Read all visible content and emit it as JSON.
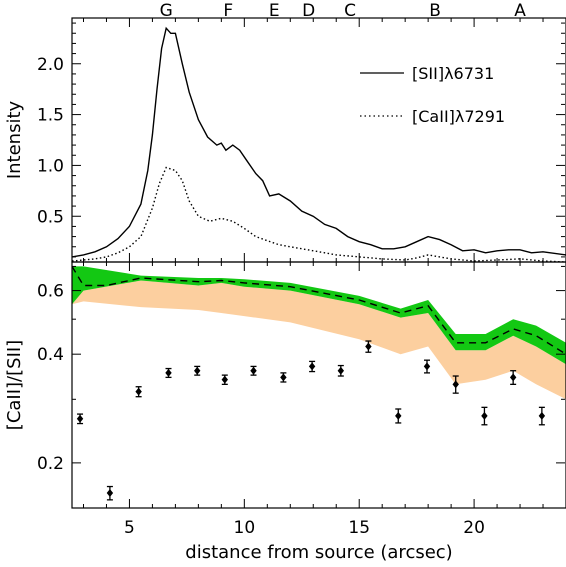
{
  "chart_data": [
    {
      "type": "line",
      "xlabel": "distance from source (arcsec)",
      "ylabel": "Intensity",
      "xlim": [
        2.5,
        24
      ],
      "ylim": [
        0.05,
        2.45
      ],
      "y_ticks": [
        "0.5",
        "1.0",
        "1.5",
        "2.0"
      ],
      "knots": [
        {
          "label": "G",
          "x": 6.6
        },
        {
          "label": "F",
          "x": 9.3
        },
        {
          "label": "E",
          "x": 11.3
        },
        {
          "label": "D",
          "x": 12.8
        },
        {
          "label": "C",
          "x": 14.6
        },
        {
          "label": "B",
          "x": 18.3
        },
        {
          "label": "A",
          "x": 22.0
        }
      ],
      "series": [
        {
          "name": "[SII]λ6731",
          "style": "solid",
          "points": [
            [
              2.5,
              0.1
            ],
            [
              3.0,
              0.12
            ],
            [
              3.5,
              0.15
            ],
            [
              4.0,
              0.2
            ],
            [
              4.5,
              0.28
            ],
            [
              5.0,
              0.4
            ],
            [
              5.5,
              0.62
            ],
            [
              5.8,
              0.95
            ],
            [
              6.0,
              1.3
            ],
            [
              6.2,
              1.75
            ],
            [
              6.4,
              2.15
            ],
            [
              6.6,
              2.35
            ],
            [
              6.8,
              2.3
            ],
            [
              7.0,
              2.3
            ],
            [
              7.3,
              2.0
            ],
            [
              7.6,
              1.72
            ],
            [
              8.0,
              1.45
            ],
            [
              8.4,
              1.28
            ],
            [
              8.8,
              1.2
            ],
            [
              9.0,
              1.22
            ],
            [
              9.2,
              1.15
            ],
            [
              9.5,
              1.2
            ],
            [
              9.8,
              1.15
            ],
            [
              10.1,
              1.05
            ],
            [
              10.5,
              0.92
            ],
            [
              10.8,
              0.85
            ],
            [
              11.1,
              0.7
            ],
            [
              11.5,
              0.72
            ],
            [
              12.0,
              0.65
            ],
            [
              12.5,
              0.55
            ],
            [
              13.0,
              0.5
            ],
            [
              13.5,
              0.42
            ],
            [
              14.0,
              0.38
            ],
            [
              14.5,
              0.3
            ],
            [
              15.0,
              0.25
            ],
            [
              15.5,
              0.22
            ],
            [
              16.0,
              0.18
            ],
            [
              16.5,
              0.18
            ],
            [
              17.0,
              0.2
            ],
            [
              17.5,
              0.25
            ],
            [
              18.0,
              0.3
            ],
            [
              18.5,
              0.27
            ],
            [
              19.0,
              0.22
            ],
            [
              19.5,
              0.16
            ],
            [
              20.0,
              0.17
            ],
            [
              20.5,
              0.14
            ],
            [
              21.0,
              0.16
            ],
            [
              21.5,
              0.17
            ],
            [
              22.0,
              0.17
            ],
            [
              22.5,
              0.14
            ],
            [
              23.0,
              0.15
            ],
            [
              24.0,
              0.12
            ]
          ]
        },
        {
          "name": "[CaII]λ7291",
          "style": "dotted",
          "points": [
            [
              2.5,
              0.06
            ],
            [
              3.0,
              0.07
            ],
            [
              3.5,
              0.08
            ],
            [
              4.0,
              0.1
            ],
            [
              4.5,
              0.14
            ],
            [
              5.0,
              0.2
            ],
            [
              5.5,
              0.3
            ],
            [
              6.0,
              0.58
            ],
            [
              6.3,
              0.82
            ],
            [
              6.6,
              0.98
            ],
            [
              7.0,
              0.95
            ],
            [
              7.3,
              0.85
            ],
            [
              7.6,
              0.65
            ],
            [
              8.0,
              0.5
            ],
            [
              8.5,
              0.45
            ],
            [
              9.0,
              0.48
            ],
            [
              9.5,
              0.45
            ],
            [
              10.0,
              0.38
            ],
            [
              10.5,
              0.3
            ],
            [
              11.0,
              0.26
            ],
            [
              11.5,
              0.22
            ],
            [
              12.0,
              0.2
            ],
            [
              12.5,
              0.18
            ],
            [
              13.0,
              0.16
            ],
            [
              13.5,
              0.14
            ],
            [
              14.0,
              0.12
            ],
            [
              15.0,
              0.1
            ],
            [
              16.0,
              0.08
            ],
            [
              17.0,
              0.07
            ],
            [
              17.5,
              0.09
            ],
            [
              18.0,
              0.12
            ],
            [
              18.5,
              0.1
            ],
            [
              19.0,
              0.08
            ],
            [
              20.0,
              0.06
            ],
            [
              21.0,
              0.07
            ],
            [
              22.0,
              0.08
            ],
            [
              23.0,
              0.06
            ],
            [
              24.0,
              0.05
            ]
          ]
        }
      ],
      "legend": "top-right"
    },
    {
      "type": "scatter",
      "xlabel": "distance from source (arcsec)",
      "ylabel": "[CaII]/[SII]",
      "xlim": [
        2.5,
        24
      ],
      "ylim": [
        0.15,
        0.72
      ],
      "y_scale": "log",
      "x_ticks": [
        "5",
        "10",
        "15",
        "20"
      ],
      "y_ticks": [
        "0.2",
        "0.4",
        "0.6"
      ],
      "green_band": {
        "x": [
          2.5,
          3.0,
          5.5,
          8.0,
          9.0,
          10.0,
          12.0,
          15.0,
          16.8,
          18.0,
          19.2,
          20.5,
          21.7,
          22.7,
          24.0
        ],
        "upper": [
          0.7,
          0.7,
          0.66,
          0.65,
          0.65,
          0.645,
          0.63,
          0.58,
          0.535,
          0.565,
          0.455,
          0.455,
          0.5,
          0.48,
          0.43
        ],
        "lower": [
          0.55,
          0.6,
          0.64,
          0.62,
          0.63,
          0.615,
          0.6,
          0.55,
          0.505,
          0.52,
          0.41,
          0.41,
          0.45,
          0.42,
          0.375
        ]
      },
      "orange_band": {
        "x": [
          2.5,
          3.0,
          5.5,
          8.0,
          9.0,
          10.0,
          12.0,
          15.0,
          16.8,
          18.0,
          19.2,
          20.5,
          21.7,
          22.7,
          24.0
        ],
        "upper": [
          0.55,
          0.6,
          0.64,
          0.62,
          0.63,
          0.615,
          0.6,
          0.55,
          0.505,
          0.52,
          0.41,
          0.41,
          0.45,
          0.42,
          0.375
        ],
        "lower": [
          0.55,
          0.56,
          0.54,
          0.53,
          0.52,
          0.51,
          0.49,
          0.44,
          0.4,
          0.42,
          0.33,
          0.34,
          0.36,
          0.33,
          0.3
        ]
      },
      "dashed_line": {
        "x": [
          2.5,
          3.0,
          4.0,
          5.5,
          8.0,
          9.0,
          10.0,
          12.0,
          15.0,
          16.8,
          18.0,
          19.2,
          20.5,
          21.7,
          22.7,
          24.0
        ],
        "y": [
          0.7,
          0.62,
          0.62,
          0.65,
          0.635,
          0.64,
          0.63,
          0.615,
          0.565,
          0.52,
          0.545,
          0.43,
          0.43,
          0.47,
          0.45,
          0.4
        ]
      },
      "points": [
        {
          "x": 2.85,
          "y": 0.265,
          "err": 0.008
        },
        {
          "x": 4.15,
          "y": 0.165,
          "err": 0.007
        },
        {
          "x": 5.4,
          "y": 0.315,
          "err": 0.01
        },
        {
          "x": 6.7,
          "y": 0.355,
          "err": 0.01
        },
        {
          "x": 7.95,
          "y": 0.36,
          "err": 0.01
        },
        {
          "x": 9.15,
          "y": 0.34,
          "err": 0.01
        },
        {
          "x": 10.4,
          "y": 0.36,
          "err": 0.01
        },
        {
          "x": 11.7,
          "y": 0.345,
          "err": 0.01
        },
        {
          "x": 12.95,
          "y": 0.37,
          "err": 0.012
        },
        {
          "x": 14.2,
          "y": 0.36,
          "err": 0.012
        },
        {
          "x": 15.4,
          "y": 0.42,
          "err": 0.015
        },
        {
          "x": 16.7,
          "y": 0.27,
          "err": 0.012
        },
        {
          "x": 17.95,
          "y": 0.37,
          "err": 0.015
        },
        {
          "x": 19.2,
          "y": 0.33,
          "err": 0.018
        },
        {
          "x": 20.45,
          "y": 0.27,
          "err": 0.015
        },
        {
          "x": 21.7,
          "y": 0.345,
          "err": 0.015
        },
        {
          "x": 22.95,
          "y": 0.27,
          "err": 0.015
        }
      ],
      "colors": {
        "green": "#13c813",
        "orange": "#fccf9f"
      }
    }
  ]
}
